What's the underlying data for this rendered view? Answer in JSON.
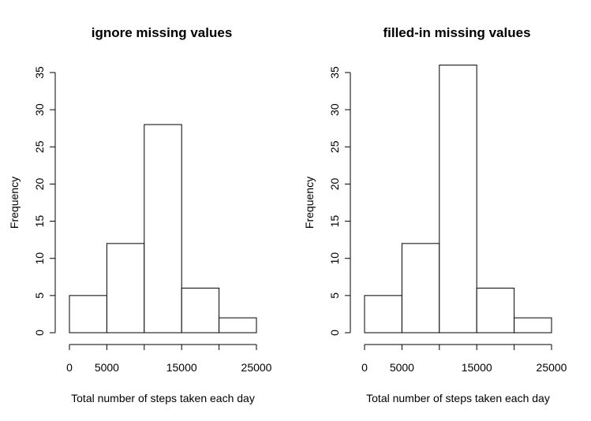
{
  "chart_data": [
    {
      "type": "bar",
      "title": "ignore missing values",
      "xlabel": "Total number of steps taken each day",
      "ylabel": "Frequency",
      "bins": [
        [
          0,
          5000
        ],
        [
          5000,
          10000
        ],
        [
          10000,
          15000
        ],
        [
          15000,
          20000
        ],
        [
          20000,
          25000
        ]
      ],
      "values": [
        5,
        12,
        28,
        6,
        2
      ],
      "xlim": [
        0,
        25000
      ],
      "ylim": [
        0,
        35
      ],
      "x_ticks": [
        0,
        5000,
        10000,
        15000,
        20000,
        25000
      ],
      "x_tick_labels": [
        "0",
        "5000",
        "",
        "15000",
        "",
        "25000"
      ],
      "y_ticks": [
        0,
        5,
        10,
        15,
        20,
        25,
        30,
        35
      ],
      "y_tick_labels": [
        "0",
        "5",
        "10",
        "15",
        "20",
        "25",
        "30",
        "35"
      ],
      "grid": false,
      "colors": {
        "bar_fill": "#ffffff",
        "bar_stroke": "#000000"
      }
    },
    {
      "type": "bar",
      "title": "filled-in missing values",
      "xlabel": "Total number of steps taken each day",
      "ylabel": "Frequency",
      "bins": [
        [
          0,
          5000
        ],
        [
          5000,
          10000
        ],
        [
          10000,
          15000
        ],
        [
          15000,
          20000
        ],
        [
          20000,
          25000
        ]
      ],
      "values": [
        5,
        12,
        36,
        6,
        2
      ],
      "xlim": [
        0,
        25000
      ],
      "ylim": [
        0,
        35
      ],
      "x_ticks": [
        0,
        5000,
        10000,
        15000,
        20000,
        25000
      ],
      "x_tick_labels": [
        "0",
        "5000",
        "",
        "15000",
        "",
        "25000"
      ],
      "y_ticks": [
        0,
        5,
        10,
        15,
        20,
        25,
        30,
        35
      ],
      "y_tick_labels": [
        "0",
        "5",
        "10",
        "15",
        "20",
        "25",
        "30",
        "35"
      ],
      "grid": false,
      "colors": {
        "bar_fill": "#ffffff",
        "bar_stroke": "#000000"
      }
    }
  ]
}
